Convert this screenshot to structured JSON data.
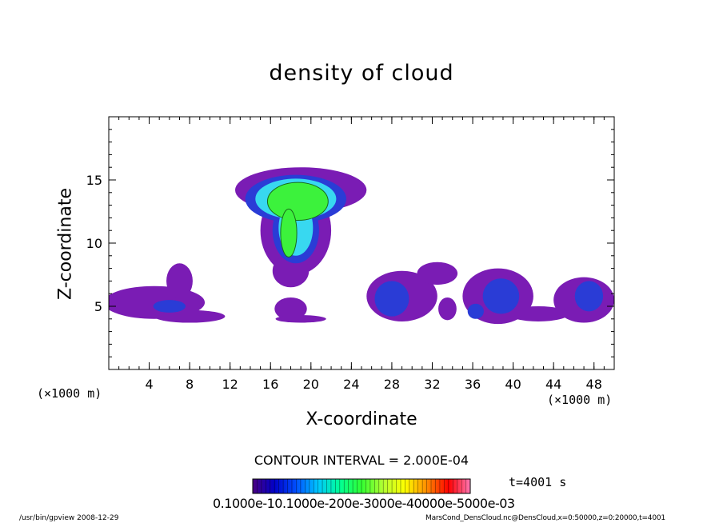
{
  "chart_data": {
    "type": "heatmap",
    "title": "density of cloud",
    "xlabel": "X-coordinate",
    "ylabel": "Z-coordinate",
    "x_unit": "(×1000 m)",
    "y_unit": "(×1000 m)",
    "xlim": [
      0,
      50
    ],
    "ylim": [
      0,
      20
    ],
    "x_ticks": [
      4,
      8,
      12,
      16,
      20,
      24,
      28,
      32,
      36,
      40,
      44,
      48
    ],
    "y_ticks": [
      5,
      10,
      15
    ],
    "contour_interval": "CONTOUR INTERVAL = 2.000E-04",
    "time_label": "t=4001 s",
    "colorbar_tick_text": "0.1000e-10.1000e-200e-3000e-40000e-5000e-03",
    "colorbar_palette": [
      "#4b0082",
      "#0000c8",
      "#0050ff",
      "#00c8ff",
      "#00ff96",
      "#32ff32",
      "#b4ff32",
      "#ffff00",
      "#ff8c00",
      "#ff0000",
      "#ff78b4"
    ],
    "regions": [
      {
        "x": 4.5,
        "z": 5.3,
        "rx": 5.0,
        "rz": 1.3,
        "level": 0
      },
      {
        "x": 8.0,
        "z": 4.2,
        "rx": 3.5,
        "rz": 0.5,
        "level": 0
      },
      {
        "x": 7.0,
        "z": 7.0,
        "rx": 1.3,
        "rz": 1.4,
        "level": 0
      },
      {
        "x": 6.0,
        "z": 5.0,
        "rx": 1.6,
        "rz": 0.5,
        "level": 1
      },
      {
        "x": 19.0,
        "z": 14.2,
        "rx": 6.5,
        "rz": 1.8,
        "level": 0
      },
      {
        "x": 18.5,
        "z": 11.0,
        "rx": 3.5,
        "rz": 3.5,
        "level": 0
      },
      {
        "x": 18.0,
        "z": 7.8,
        "rx": 1.8,
        "rz": 1.3,
        "level": 0
      },
      {
        "x": 18.0,
        "z": 4.8,
        "rx": 1.6,
        "rz": 0.9,
        "level": 0
      },
      {
        "x": 19.0,
        "z": 4.0,
        "rx": 2.5,
        "rz": 0.3,
        "level": 0
      },
      {
        "x": 18.5,
        "z": 13.5,
        "rx": 5.0,
        "rz": 1.9,
        "level": 1
      },
      {
        "x": 18.5,
        "z": 11.0,
        "rx": 2.3,
        "rz": 2.6,
        "level": 1
      },
      {
        "x": 18.5,
        "z": 13.5,
        "rx": 4.0,
        "rz": 1.6,
        "level": 2
      },
      {
        "x": 18.5,
        "z": 11.2,
        "rx": 1.7,
        "rz": 2.2,
        "level": 2
      },
      {
        "x": 18.7,
        "z": 13.3,
        "rx": 3.0,
        "rz": 1.5,
        "level": 3
      },
      {
        "x": 17.8,
        "z": 10.8,
        "rx": 0.8,
        "rz": 1.9,
        "level": 3
      },
      {
        "x": 29.0,
        "z": 5.8,
        "rx": 3.5,
        "rz": 2.0,
        "level": 0
      },
      {
        "x": 32.5,
        "z": 7.6,
        "rx": 2.0,
        "rz": 0.9,
        "level": 0
      },
      {
        "x": 33.5,
        "z": 4.8,
        "rx": 0.9,
        "rz": 0.9,
        "level": 0
      },
      {
        "x": 28.0,
        "z": 5.6,
        "rx": 1.7,
        "rz": 1.4,
        "level": 1
      },
      {
        "x": 38.5,
        "z": 5.8,
        "rx": 3.5,
        "rz": 2.2,
        "level": 0
      },
      {
        "x": 47.0,
        "z": 5.5,
        "rx": 3.0,
        "rz": 1.8,
        "level": 0
      },
      {
        "x": 42.5,
        "z": 4.4,
        "rx": 3.0,
        "rz": 0.6,
        "level": 0
      },
      {
        "x": 38.8,
        "z": 5.8,
        "rx": 1.8,
        "rz": 1.4,
        "level": 1
      },
      {
        "x": 36.3,
        "z": 4.6,
        "rx": 0.8,
        "rz": 0.6,
        "level": 1
      },
      {
        "x": 47.5,
        "z": 5.8,
        "rx": 1.4,
        "rz": 1.2,
        "level": 1
      }
    ]
  },
  "footer": {
    "left": "/usr/bin/gpview   2008-12-29",
    "right": "MarsCond_DensCloud.nc@DensCloud,x=0:50000,z=0:20000,t=4001"
  }
}
